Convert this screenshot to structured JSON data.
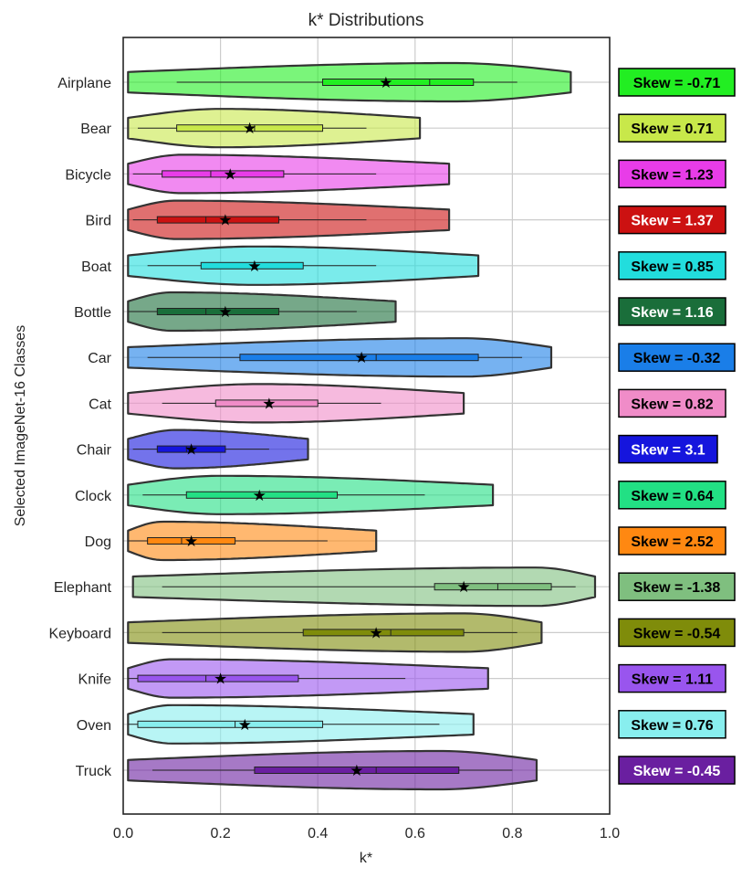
{
  "chart_data": {
    "type": "violin",
    "title": "k* Distributions",
    "xlabel": "k*",
    "ylabel": "Selected ImageNet-16 Classes",
    "xlim": [
      0.0,
      1.0
    ],
    "xticks": [
      "0.0",
      "0.2",
      "0.4",
      "0.6",
      "0.8",
      "1.0"
    ],
    "xtick_values": [
      0.0,
      0.2,
      0.4,
      0.6,
      0.8,
      1.0
    ],
    "grid": true,
    "skew_prefix": "Skew = ",
    "classes": [
      {
        "name": "Airplane",
        "color": "#22ee22",
        "text_color": "#000000",
        "skew": -0.71,
        "skew_label": "-0.71",
        "min": 0.01,
        "max": 0.92,
        "q1": 0.41,
        "median": 0.63,
        "q3": 0.72,
        "mean": 0.54,
        "mode": 0.68,
        "w_lo": 0.11,
        "w_hi": 0.81
      },
      {
        "name": "Bear",
        "color": "#c8e84a",
        "text_color": "#000000",
        "skew": 0.71,
        "skew_label": "0.71",
        "min": 0.01,
        "max": 0.61,
        "q1": 0.11,
        "median": 0.27,
        "q3": 0.41,
        "mean": 0.26,
        "mode": 0.2,
        "w_lo": 0.03,
        "w_hi": 0.5
      },
      {
        "name": "Bicycle",
        "color": "#e83ce8",
        "text_color": "#000000",
        "skew": 1.23,
        "skew_label": "1.23",
        "min": 0.01,
        "max": 0.67,
        "q1": 0.08,
        "median": 0.18,
        "q3": 0.33,
        "mean": 0.22,
        "mode": 0.12,
        "w_lo": 0.02,
        "w_hi": 0.52
      },
      {
        "name": "Bird",
        "color": "#cc1111",
        "text_color": "#ffffff",
        "skew": 1.37,
        "skew_label": "1.37",
        "min": 0.01,
        "max": 0.67,
        "q1": 0.07,
        "median": 0.17,
        "q3": 0.32,
        "mean": 0.21,
        "mode": 0.11,
        "w_lo": 0.02,
        "w_hi": 0.5
      },
      {
        "name": "Boat",
        "color": "#22dddd",
        "text_color": "#000000",
        "skew": 0.85,
        "skew_label": "0.85",
        "min": 0.01,
        "max": 0.73,
        "q1": 0.16,
        "median": 0.27,
        "q3": 0.37,
        "mean": 0.27,
        "mode": 0.27,
        "w_lo": 0.05,
        "w_hi": 0.52
      },
      {
        "name": "Bottle",
        "color": "#1a6e3a",
        "text_color": "#ffffff",
        "skew": 1.16,
        "skew_label": "1.16",
        "min": 0.01,
        "max": 0.56,
        "q1": 0.07,
        "median": 0.17,
        "q3": 0.32,
        "mean": 0.21,
        "mode": 0.1,
        "w_lo": 0.01,
        "w_hi": 0.48
      },
      {
        "name": "Car",
        "color": "#1a7ee8",
        "text_color": "#000000",
        "skew": -0.32,
        "skew_label": "-0.32",
        "min": 0.01,
        "max": 0.88,
        "q1": 0.24,
        "median": 0.52,
        "q3": 0.73,
        "mean": 0.49,
        "mode": 0.7,
        "w_lo": 0.05,
        "w_hi": 0.82
      },
      {
        "name": "Cat",
        "color": "#f08cc8",
        "text_color": "#000000",
        "skew": 0.82,
        "skew_label": "0.82",
        "min": 0.01,
        "max": 0.7,
        "q1": 0.19,
        "median": 0.3,
        "q3": 0.4,
        "mean": 0.3,
        "mode": 0.28,
        "w_lo": 0.08,
        "w_hi": 0.53
      },
      {
        "name": "Chair",
        "color": "#1515dd",
        "text_color": "#ffffff",
        "skew": 3.1,
        "skew_label": "3.1",
        "min": 0.01,
        "max": 0.38,
        "q1": 0.07,
        "median": 0.13,
        "q3": 0.21,
        "mean": 0.14,
        "mode": 0.11,
        "w_lo": 0.02,
        "w_hi": 0.3
      },
      {
        "name": "Clock",
        "color": "#22e084",
        "text_color": "#000000",
        "skew": 0.64,
        "skew_label": "0.64",
        "min": 0.01,
        "max": 0.76,
        "q1": 0.13,
        "median": 0.28,
        "q3": 0.44,
        "mean": 0.28,
        "mode": 0.2,
        "w_lo": 0.04,
        "w_hi": 0.62
      },
      {
        "name": "Dog",
        "color": "#ff8811",
        "text_color": "#000000",
        "skew": 2.52,
        "skew_label": "2.52",
        "min": 0.01,
        "max": 0.52,
        "q1": 0.05,
        "median": 0.12,
        "q3": 0.23,
        "mean": 0.14,
        "mode": 0.08,
        "w_lo": 0.01,
        "w_hi": 0.42
      },
      {
        "name": "Elephant",
        "color": "#7fbf7f",
        "text_color": "#000000",
        "skew": -1.38,
        "skew_label": "-1.38",
        "min": 0.02,
        "max": 0.97,
        "q1": 0.64,
        "median": 0.77,
        "q3": 0.88,
        "mean": 0.7,
        "mode": 0.85,
        "w_lo": 0.08,
        "w_hi": 0.93
      },
      {
        "name": "Keyboard",
        "color": "#7f8c0a",
        "text_color": "#000000",
        "skew": -0.54,
        "skew_label": "-0.54",
        "min": 0.01,
        "max": 0.86,
        "q1": 0.37,
        "median": 0.55,
        "q3": 0.7,
        "mean": 0.52,
        "mode": 0.7,
        "w_lo": 0.08,
        "w_hi": 0.81
      },
      {
        "name": "Knife",
        "color": "#9955ee",
        "text_color": "#000000",
        "skew": 1.11,
        "skew_label": "1.11",
        "min": 0.01,
        "max": 0.75,
        "q1": 0.03,
        "median": 0.17,
        "q3": 0.36,
        "mean": 0.2,
        "mode": 0.1,
        "w_lo": 0.01,
        "w_hi": 0.58
      },
      {
        "name": "Oven",
        "color": "#88eeee",
        "text_color": "#000000",
        "skew": 0.76,
        "skew_label": "0.76",
        "min": 0.01,
        "max": 0.72,
        "q1": 0.03,
        "median": 0.23,
        "q3": 0.41,
        "mean": 0.25,
        "mode": 0.1,
        "w_lo": 0.01,
        "w_hi": 0.65
      },
      {
        "name": "Truck",
        "color": "#6a1fa0",
        "text_color": "#ffffff",
        "skew": -0.45,
        "skew_label": "-0.45",
        "min": 0.01,
        "max": 0.85,
        "q1": 0.27,
        "median": 0.52,
        "q3": 0.69,
        "mean": 0.48,
        "mode": 0.65,
        "w_lo": 0.06,
        "w_hi": 0.8
      }
    ]
  }
}
